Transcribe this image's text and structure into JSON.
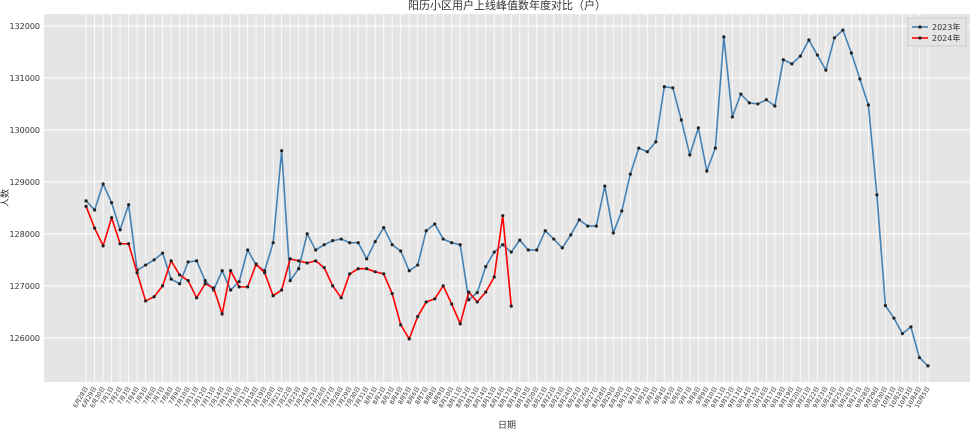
{
  "chart_data": {
    "type": "line",
    "title": "阳历小区用户上线峰值数年度对比（户）",
    "xlabel": "日期",
    "ylabel": "人数",
    "categories": [
      "6月28日",
      "6月29日",
      "6月30日",
      "7月1日",
      "7月2日",
      "7月3日",
      "7月4日",
      "7月5日",
      "7月6日",
      "7月7日",
      "7月8日",
      "7月9日",
      "7月10日",
      "7月11日",
      "7月12日",
      "7月13日",
      "7月14日",
      "7月15日",
      "7月16日",
      "7月17日",
      "7月18日",
      "7月19日",
      "7月20日",
      "7月21日",
      "7月22日",
      "7月23日",
      "7月24日",
      "7月25日",
      "7月26日",
      "7月27日",
      "7月28日",
      "7月29日",
      "7月30日",
      "7月31日",
      "8月1日",
      "8月2日",
      "8月3日",
      "8月4日",
      "8月5日",
      "8月6日",
      "8月7日",
      "8月8日",
      "8月9日",
      "8月10日",
      "8月11日",
      "8月12日",
      "8月13日",
      "8月14日",
      "8月15日",
      "8月16日",
      "8月17日",
      "8月18日",
      "8月19日",
      "8月20日",
      "8月21日",
      "8月22日",
      "8月23日",
      "8月24日",
      "8月25日",
      "8月26日",
      "8月27日",
      "8月28日",
      "8月29日",
      "8月30日",
      "8月31日",
      "9月1日",
      "9月2日",
      "9月3日",
      "9月4日",
      "9月5日",
      "9月6日",
      "9月7日",
      "9月8日",
      "9月9日",
      "9月10日",
      "9月11日",
      "9月12日",
      "9月13日",
      "9月14日",
      "9月15日",
      "9月16日",
      "9月17日",
      "9月18日",
      "9月19日",
      "9月20日",
      "9月21日",
      "9月22日",
      "9月23日",
      "9月24日",
      "9月25日",
      "9月26日",
      "9月27日",
      "9月28日",
      "9月29日",
      "9月30日",
      "10月1日",
      "10月2日",
      "10月3日",
      "10月4日",
      "10月5日"
    ],
    "series": [
      {
        "name": "2023年",
        "color": "#4682b4",
        "values": [
          128635,
          128460,
          128960,
          128600,
          128080,
          128560,
          127300,
          127400,
          127500,
          127630,
          127130,
          127040,
          127460,
          127480,
          127100,
          126920,
          127290,
          126920,
          127080,
          127690,
          127400,
          127290,
          127830,
          129600,
          127100,
          127330,
          128000,
          127690,
          127790,
          127870,
          127900,
          127830,
          127830,
          127520,
          127850,
          128120,
          127790,
          127670,
          127290,
          127400,
          128060,
          128190,
          127900,
          127830,
          127790,
          126730,
          126870,
          127370,
          127650,
          127790,
          127650,
          127880,
          127690,
          127690,
          128060,
          127900,
          127730,
          127980,
          128270,
          128150,
          128150,
          128920,
          128020,
          128440,
          129150,
          129650,
          129580,
          129770,
          130830,
          130810,
          130190,
          129520,
          130040,
          129210,
          129650,
          131790,
          130250,
          130690,
          130520,
          130500,
          130580,
          130460,
          131350,
          131270,
          131420,
          131730,
          131440,
          131150,
          131770,
          131920,
          131480,
          130980,
          130480,
          128750,
          126620,
          126380,
          126080,
          126210,
          125620,
          125460
        ]
      },
      {
        "name": "2024年",
        "color": "#ff0000",
        "values": [
          128530,
          128110,
          127770,
          128310,
          127810,
          127810,
          127250,
          126710,
          126790,
          127000,
          127480,
          127210,
          127100,
          126770,
          127040,
          126960,
          126460,
          127290,
          126980,
          126980,
          127420,
          127250,
          126810,
          126920,
          127520,
          127480,
          127440,
          127480,
          127350,
          127000,
          126770,
          127230,
          127330,
          127330,
          127270,
          127230,
          126850,
          126250,
          125980,
          126410,
          126690,
          126750,
          127000,
          126650,
          126270,
          126880,
          126690,
          126880,
          127170,
          128350,
          126610,
          null,
          null,
          null,
          null,
          null,
          null,
          null,
          null,
          null,
          null,
          null,
          null,
          null,
          null,
          null,
          null,
          null,
          null,
          null,
          null,
          null,
          null,
          null,
          null,
          null,
          null,
          null,
          null,
          null,
          null,
          null,
          null,
          null,
          null,
          null,
          null,
          null,
          null,
          null,
          null,
          null,
          null,
          null,
          null,
          null,
          null,
          null,
          null,
          null
        ]
      }
    ],
    "ylim": [
      125150,
      132230
    ],
    "yticks": [
      126000,
      127000,
      128000,
      129000,
      130000,
      131000,
      132000
    ],
    "grid": true,
    "legend": "upper right"
  }
}
